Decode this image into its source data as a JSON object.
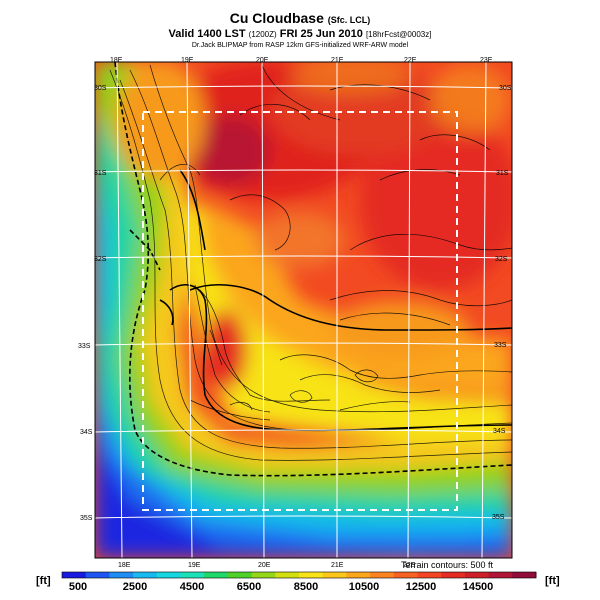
{
  "title": {
    "main": "Cu Cloudbase",
    "main_suffix": "(Sfc. LCL)",
    "valid": "Valid 1400 LST",
    "valid_code": "(1200Z)",
    "date": "FRI 25 Jun 2010",
    "forecast": "[18hrFcst@0003z]",
    "subtitle": "Dr.Jack BLIPMAP from RASP 12km GFS-initialized WRF-ARW model"
  },
  "map": {
    "lon_labels_top": [
      "18E",
      "19E",
      "20E",
      "21E",
      "22E",
      "23E"
    ],
    "lon_labels_bottom": [
      "18E",
      "19E",
      "20E",
      "21E",
      "22E"
    ],
    "lat_labels_left": [
      "30S",
      "31S",
      "32S",
      "33S",
      "34S",
      "35S"
    ],
    "lat_labels_right": [
      "30S",
      "31S",
      "32S",
      "33S",
      "34S",
      "35S"
    ],
    "terrain_note": "Terrain contours: 500 ft"
  },
  "colorbar": {
    "unit_left": "[ft]",
    "unit_right": "[ft]",
    "tick_labels": [
      "500",
      "2500",
      "4500",
      "6500",
      "8500",
      "10500",
      "12500",
      "14500"
    ],
    "colors": [
      "#1a1ae0",
      "#1f55f0",
      "#1e8cf2",
      "#18b9f0",
      "#16d6e0",
      "#1ce0b8",
      "#20d86a",
      "#4ed22a",
      "#96d61a",
      "#d2e012",
      "#f7e318",
      "#fbc71a",
      "#fba61d",
      "#fb8420",
      "#f76222",
      "#f34423",
      "#e42b24",
      "#cc1f2a",
      "#b01436",
      "#900c3a"
    ]
  }
}
